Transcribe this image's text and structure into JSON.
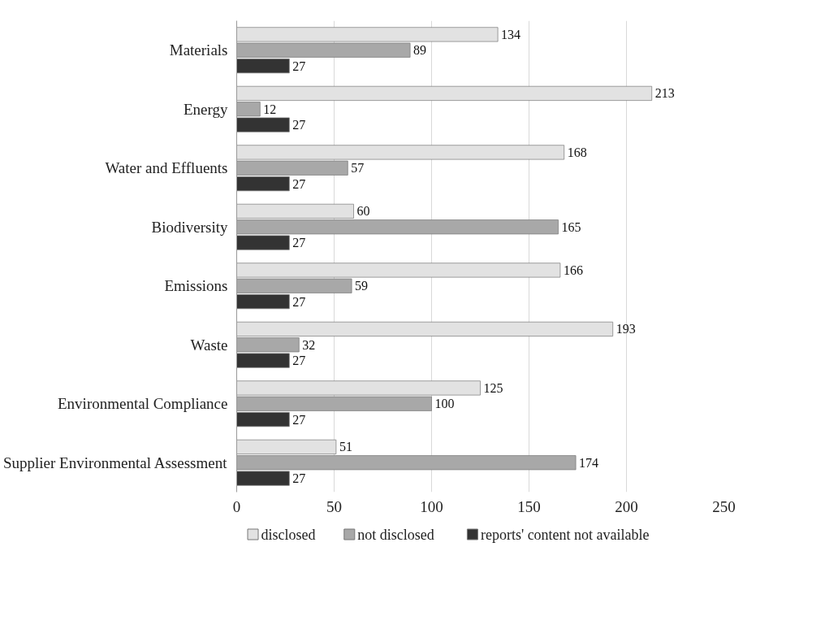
{
  "chart_data": {
    "type": "bar",
    "orientation": "horizontal",
    "categories": [
      "Materials",
      "Energy",
      "Water and Effluents",
      "Biodiversity",
      "Emissions",
      "Waste",
      "Environmental Compliance",
      "Supplier Environmental Assessment"
    ],
    "series": [
      {
        "name": "disclosed",
        "color": "#e2e2e2",
        "values": [
          134,
          213,
          168,
          60,
          166,
          193,
          125,
          51
        ]
      },
      {
        "name": "not disclosed",
        "color": "#a8a8a8",
        "values": [
          89,
          12,
          57,
          165,
          59,
          32,
          100,
          174
        ]
      },
      {
        "name": "reports' content not available",
        "color": "#333333",
        "values": [
          27,
          27,
          27,
          27,
          27,
          27,
          27,
          27
        ]
      }
    ],
    "xlim": [
      0,
      250
    ],
    "xticks": [
      0,
      50,
      100,
      150,
      200,
      250
    ],
    "grid": "x",
    "legend": "bottom",
    "data_labels": true
  }
}
